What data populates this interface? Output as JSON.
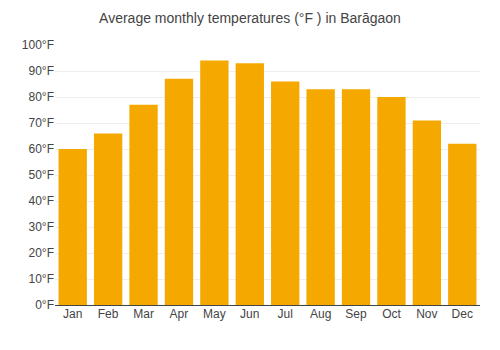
{
  "chart_data": {
    "type": "bar",
    "title": "Average monthly temperatures (°F ) in Barāgaon",
    "categories": [
      "Jan",
      "Feb",
      "Mar",
      "Apr",
      "May",
      "Jun",
      "Jul",
      "Aug",
      "Sep",
      "Oct",
      "Nov",
      "Dec"
    ],
    "values": [
      60,
      66,
      77,
      87,
      94,
      93,
      86,
      83,
      83,
      80,
      71,
      62
    ],
    "color": "#F5A800",
    "ylim": [
      0,
      100
    ],
    "yticks": [
      {
        "value": 0,
        "label": "0°F"
      },
      {
        "value": 10,
        "label": "10°F"
      },
      {
        "value": 20,
        "label": "20°F"
      },
      {
        "value": 30,
        "label": "30°F"
      },
      {
        "value": 40,
        "label": "40°F"
      },
      {
        "value": 50,
        "label": "50°F"
      },
      {
        "value": 60,
        "label": "60°F"
      },
      {
        "value": 70,
        "label": "70°F"
      },
      {
        "value": 80,
        "label": "80°F"
      },
      {
        "value": 90,
        "label": "90°F"
      },
      {
        "value": 100,
        "label": "100°F"
      }
    ],
    "grid": true
  }
}
